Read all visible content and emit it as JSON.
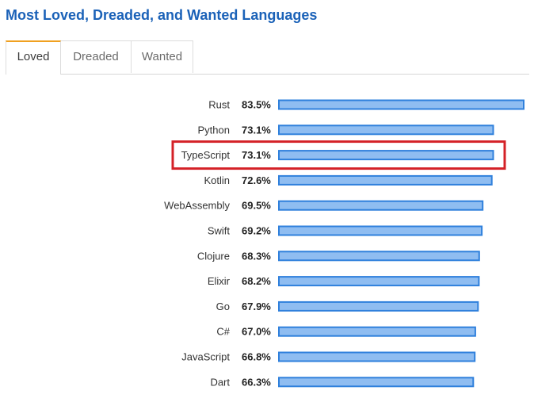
{
  "title": "Most Loved, Dreaded, and Wanted Languages",
  "tabs": [
    {
      "label": "Loved",
      "active": true
    },
    {
      "label": "Dreaded",
      "active": false
    },
    {
      "label": "Wanted",
      "active": false
    }
  ],
  "colors": {
    "title": "#1b62b8",
    "active_tab_accent": "#f0a020",
    "bar_fill": "#8fbdf1",
    "bar_stroke": "#2f80dc",
    "highlight": "#d42127"
  },
  "chart_data": {
    "type": "bar",
    "orientation": "horizontal",
    "categories": [
      "Rust",
      "Python",
      "TypeScript",
      "Kotlin",
      "WebAssembly",
      "Swift",
      "Clojure",
      "Elixir",
      "Go",
      "C#",
      "JavaScript",
      "Dart"
    ],
    "values": [
      83.5,
      73.1,
      73.1,
      72.6,
      69.5,
      69.2,
      68.3,
      68.2,
      67.9,
      67.0,
      66.8,
      66.3
    ],
    "value_labels": [
      "83.5%",
      "73.1%",
      "73.1%",
      "72.6%",
      "69.5%",
      "69.2%",
      "68.3%",
      "68.2%",
      "67.9%",
      "67.0%",
      "66.8%",
      "66.3%"
    ],
    "unit": "%",
    "highlighted_category": "TypeScript",
    "grid": false,
    "legend": "none"
  }
}
